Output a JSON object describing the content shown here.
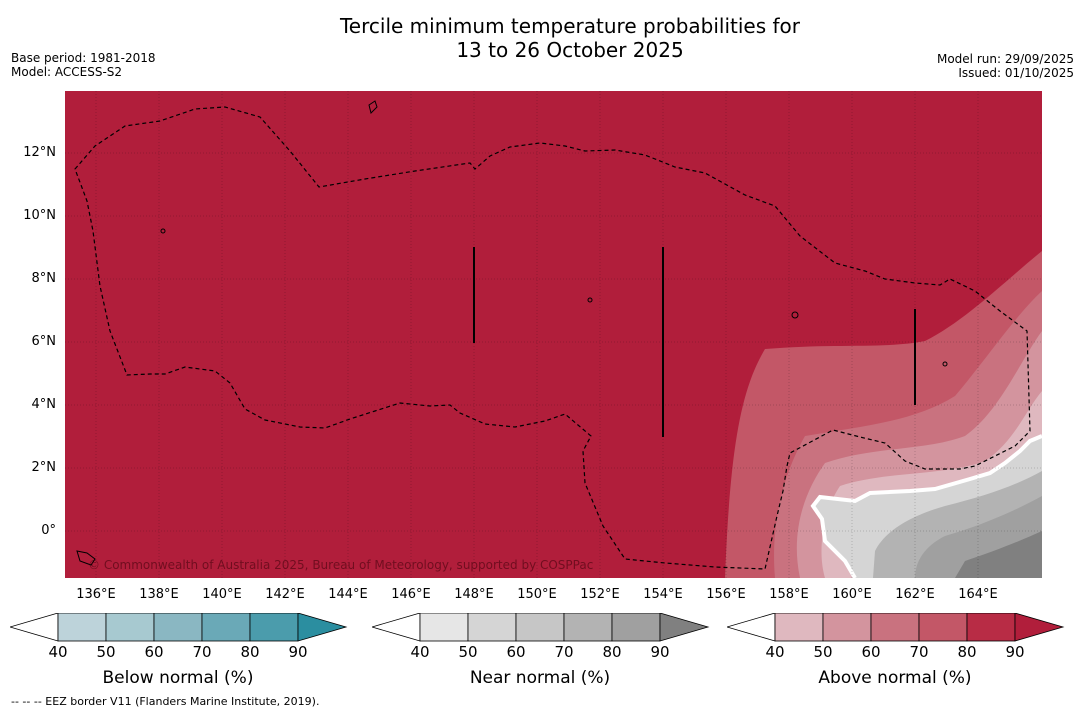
{
  "title": {
    "line1": "Tercile minimum temperature probabilities for",
    "line2": "13 to 26 October 2025"
  },
  "meta_left": {
    "base_period": "Base period: 1981-2018",
    "model": "Model: ACCESS-S2"
  },
  "meta_right": {
    "model_run": "Model run: 29/09/2025",
    "issued": "Issued: 01/10/2025"
  },
  "map": {
    "lat_labels": [
      "12°N",
      "10°N",
      "8°N",
      "6°N",
      "4°N",
      "2°N",
      "0°"
    ],
    "lon_labels": [
      "136°E",
      "138°E",
      "140°E",
      "142°E",
      "144°E",
      "146°E",
      "148°E",
      "150°E",
      "152°E",
      "154°E",
      "156°E",
      "158°E",
      "160°E",
      "162°E",
      "164°E"
    ],
    "copyright": "© Commonwealth of Australia 2025, Bureau of Meteorology, supported by COSPPac",
    "dominant_category": "Above normal",
    "dominant_color": "#b11e3b"
  },
  "colorbars": {
    "ticks": [
      "40",
      "50",
      "60",
      "70",
      "80",
      "90"
    ],
    "below": {
      "label": "Below normal (%)",
      "colors": [
        "#ffffff",
        "#bdd3da",
        "#a7c9d0",
        "#8ab7c2",
        "#6aa9b7",
        "#4b9cac",
        "#2b8ea0"
      ]
    },
    "near": {
      "label": "Near normal (%)",
      "colors": [
        "#ffffff",
        "#e6e6e6",
        "#d5d5d5",
        "#c6c6c6",
        "#b3b3b3",
        "#a0a0a0",
        "#808080"
      ]
    },
    "above": {
      "label": "Above normal (%)",
      "colors": [
        "#ffffff",
        "#dfb8bf",
        "#d3949e",
        "#c9727f",
        "#c35767",
        "#b82c45",
        "#b11e3b"
      ]
    }
  },
  "footer": "--  --  -- EEZ border V11 (Flanders Marine Institute, 2019)."
}
